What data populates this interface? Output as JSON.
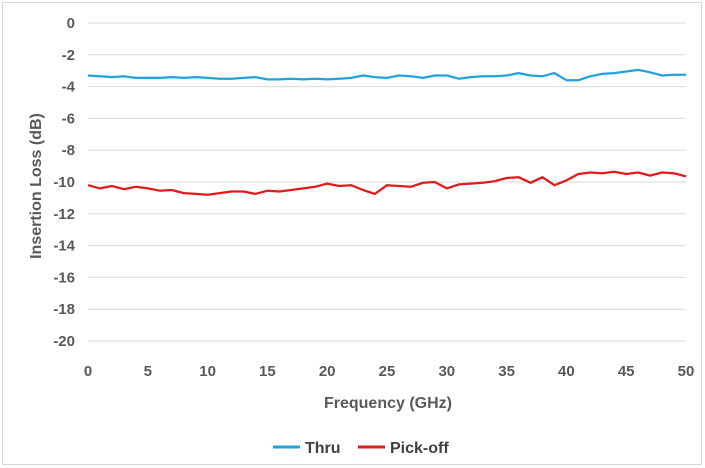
{
  "chart_data": {
    "type": "line",
    "title": "",
    "xlabel": "Frequency (GHz)",
    "ylabel": "Insertion Loss (dB)",
    "xlim": [
      0,
      50
    ],
    "ylim": [
      -20,
      0
    ],
    "xticks": [
      0,
      5,
      10,
      15,
      20,
      25,
      30,
      35,
      40,
      45,
      50
    ],
    "yticks": [
      0,
      -2,
      -4,
      -6,
      -8,
      -10,
      -12,
      -14,
      -16,
      -18,
      -20
    ],
    "grid": true,
    "legend_position": "bottom",
    "series": [
      {
        "name": "Thru",
        "color": "#1fa3dc",
        "x": [
          0,
          1,
          2,
          3,
          4,
          5,
          6,
          7,
          8,
          9,
          10,
          11,
          12,
          13,
          14,
          15,
          16,
          17,
          18,
          19,
          20,
          21,
          22,
          23,
          24,
          25,
          26,
          27,
          28,
          29,
          30,
          31,
          32,
          33,
          34,
          35,
          36,
          37,
          38,
          39,
          40,
          41,
          42,
          43,
          44,
          45,
          46,
          47,
          48,
          49,
          50
        ],
        "values": [
          -3.3,
          -3.35,
          -3.4,
          -3.35,
          -3.45,
          -3.45,
          -3.45,
          -3.4,
          -3.45,
          -3.4,
          -3.45,
          -3.5,
          -3.5,
          -3.45,
          -3.4,
          -3.55,
          -3.55,
          -3.5,
          -3.55,
          -3.5,
          -3.55,
          -3.5,
          -3.45,
          -3.3,
          -3.4,
          -3.45,
          -3.3,
          -3.35,
          -3.45,
          -3.3,
          -3.3,
          -3.5,
          -3.4,
          -3.35,
          -3.35,
          -3.3,
          -3.15,
          -3.3,
          -3.35,
          -3.15,
          -3.6,
          -3.6,
          -3.35,
          -3.2,
          -3.15,
          -3.05,
          -2.95,
          -3.1,
          -3.3,
          -3.25,
          -3.25
        ]
      },
      {
        "name": "Pick-off",
        "color": "#e31a1c",
        "x": [
          0,
          1,
          2,
          3,
          4,
          5,
          6,
          7,
          8,
          9,
          10,
          11,
          12,
          13,
          14,
          15,
          16,
          17,
          18,
          19,
          20,
          21,
          22,
          23,
          24,
          25,
          26,
          27,
          28,
          29,
          30,
          31,
          32,
          33,
          34,
          35,
          36,
          37,
          38,
          39,
          40,
          41,
          42,
          43,
          44,
          45,
          46,
          47,
          48,
          49,
          50
        ],
        "values": [
          -10.2,
          -10.4,
          -10.25,
          -10.45,
          -10.3,
          -10.4,
          -10.55,
          -10.5,
          -10.7,
          -10.75,
          -10.8,
          -10.7,
          -10.6,
          -10.6,
          -10.75,
          -10.55,
          -10.6,
          -10.5,
          -10.4,
          -10.3,
          -10.1,
          -10.25,
          -10.2,
          -10.5,
          -10.75,
          -10.2,
          -10.25,
          -10.3,
          -10.05,
          -10.0,
          -10.4,
          -10.15,
          -10.1,
          -10.05,
          -9.95,
          -9.75,
          -9.7,
          -10.05,
          -9.7,
          -10.2,
          -9.9,
          -9.5,
          -9.4,
          -9.45,
          -9.35,
          -9.5,
          -9.4,
          -9.6,
          -9.4,
          -9.45,
          -9.65
        ]
      }
    ]
  }
}
